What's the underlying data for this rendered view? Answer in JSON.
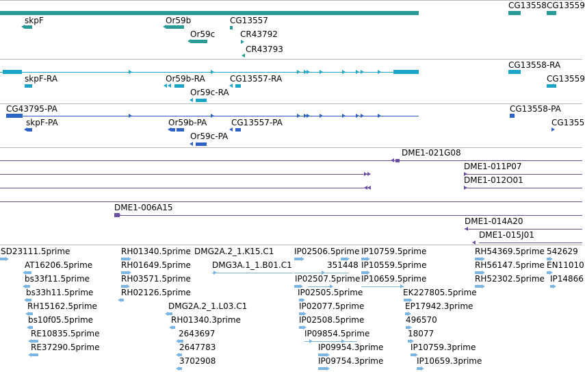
{
  "colors": {
    "gene": "#2a9a96",
    "mrna": "#1ba3c8",
    "protein": "#2e63c4",
    "bac": "#6a4fa3",
    "est": "#7ab4e0",
    "separator": "#b8b8b8"
  },
  "tracks": {
    "genes": {
      "labels": [
        "skpF",
        "Or59b",
        "Or59c",
        "CG13557",
        "CR43792",
        "CR43793",
        "CG13558",
        "CG13559"
      ]
    },
    "transcripts": {
      "labels": [
        "skpF-RA",
        "Or59b-RA",
        "Or59c-RA",
        "CG13557-RA",
        "CG13558-RA",
        "CG13559"
      ]
    },
    "proteins": {
      "labels": [
        "CG43795-PA",
        "skpF-PA",
        "Or59b-PA",
        "Or59c-PA",
        "CG13557-PA",
        "CG13558-PA",
        "CG1355"
      ]
    },
    "bac_clones": {
      "labels": [
        "DME1-021G08",
        "DME1-011P07",
        "DME1-012O01",
        "DME1-006A15",
        "DME1-014A20",
        "DME1-015J01"
      ]
    },
    "ests": {
      "labels": [
        "SD23111.5prime",
        "AT16206.5prime",
        "bs33f11.5prime",
        "bs33h11.5prime",
        "RH15162.5prime",
        "bs10f05.5prime",
        "RE10835.5prime",
        "RE37290.5prime",
        "RH01340.5prime",
        "RH01649.5prime",
        "RH03571.5prime",
        "RH02126.5prime",
        "DMG2A.2_1.K15.C1",
        "DMG3A.1_1.B01.C1",
        "DMG2A.2_1.L03.C1",
        "RH01340.3prime",
        "2643697",
        "2647783",
        "3702908",
        "IP02506.5prime",
        "351448",
        "IP02507.5prime",
        "IP02505.5prime",
        "IP02077.5prime",
        "IP02508.5prime",
        "IP09854.5prime",
        "IP09954.3prime",
        "IP09754.3prime",
        "IP10759.5prime",
        "IP10559.5prime",
        "IP10659.5prime",
        "EK227805.5prime",
        "EP17942.3prime",
        "496570",
        "18077",
        "IP10759.3prime",
        "IP10659.3prime",
        "RH54369.5prime",
        "RH56147.5prime",
        "RH52302.5prime",
        "542629",
        "EN11010",
        "IP14866"
      ]
    }
  }
}
